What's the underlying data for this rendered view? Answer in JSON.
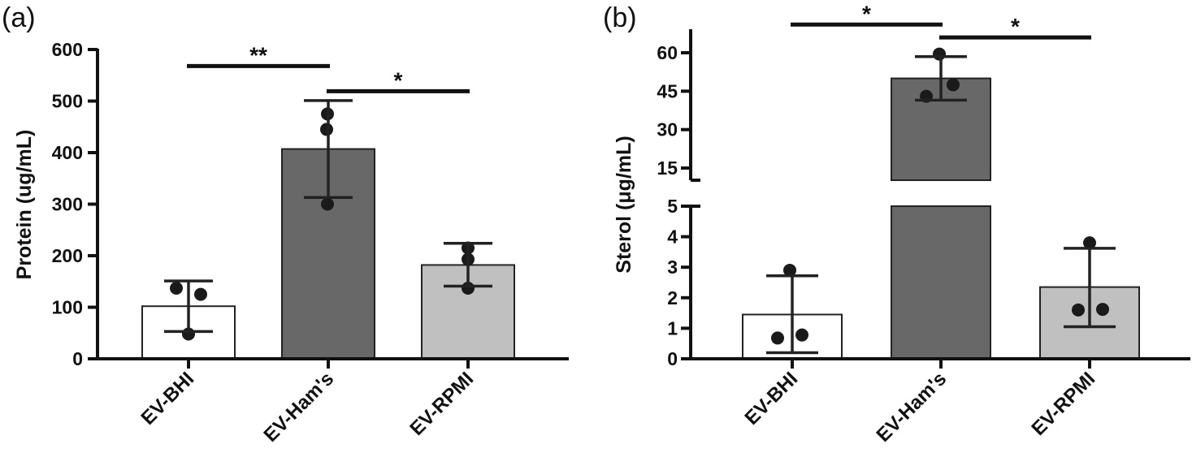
{
  "chart_data": [
    {
      "panel": "(a)",
      "type": "bar",
      "ylabel": "Protein (ug/mL)",
      "categories": [
        "EV-BHI",
        "EV-Ham's",
        "EV-RPMI"
      ],
      "values": [
        102,
        407,
        182
      ],
      "errors": [
        {
          "low": 53,
          "high": 151
        },
        {
          "low": 313,
          "high": 501
        },
        {
          "low": 141,
          "high": 224
        }
      ],
      "points": [
        [
          137,
          125,
          48
        ],
        [
          475,
          445,
          300
        ],
        [
          215,
          193,
          137
        ]
      ],
      "colors": [
        "#ffffff",
        "#686868",
        "#c0c0c0"
      ],
      "ylim": [
        0,
        600
      ],
      "yticks": [
        0,
        100,
        200,
        300,
        400,
        500,
        600
      ],
      "significance": [
        {
          "from": 0,
          "to": 1,
          "label": "**",
          "y": 568
        },
        {
          "from": 1,
          "to": 2,
          "label": "*",
          "y": 519
        }
      ]
    },
    {
      "panel": "(b)",
      "type": "bar",
      "ylabel": "Sterol (μg/mL)",
      "broken_axis": {
        "lower": [
          0,
          5
        ],
        "upper": [
          10,
          65
        ]
      },
      "categories": [
        "EV-BHI",
        "EV-Ham's",
        "EV-RPMI"
      ],
      "values": [
        1.45,
        50,
        2.35
      ],
      "errors": [
        {
          "low": 0.2,
          "high": 2.72
        },
        {
          "low": 41.5,
          "high": 58.5
        },
        {
          "low": 1.05,
          "high": 3.62
        }
      ],
      "points": [
        [
          2.9,
          0.68,
          0.78
        ],
        [
          59.5,
          47.5,
          43
        ],
        [
          3.8,
          1.6,
          1.62
        ]
      ],
      "colors": [
        "#ffffff",
        "#686868",
        "#c0c0c0"
      ],
      "yticks_lower": [
        0,
        1,
        2,
        3,
        4,
        5
      ],
      "yticks_upper": [
        15,
        30,
        45,
        60
      ],
      "significance": [
        {
          "from": 0,
          "to": 1,
          "label": "*",
          "y": 71
        },
        {
          "from": 1,
          "to": 2,
          "label": "*",
          "y": 66
        }
      ]
    }
  ]
}
